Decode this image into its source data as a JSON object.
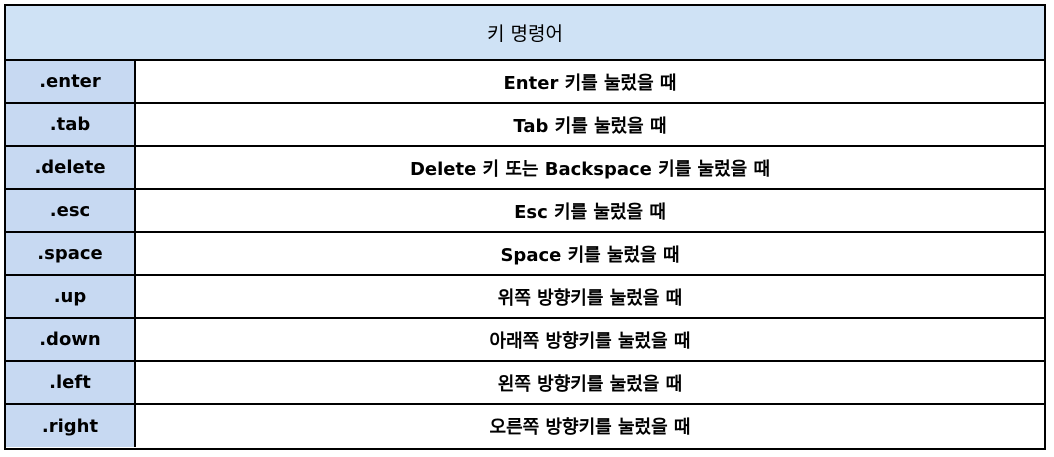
{
  "table": {
    "header": "키 명령어",
    "rows": [
      {
        "key": ".enter",
        "desc": "Enter 키를 눌렀을 때"
      },
      {
        "key": ".tab",
        "desc": "Tab 키를 눌렀을 때"
      },
      {
        "key": ".delete",
        "desc": "Delete 키 또는 Backspace 키를 눌렀을 때"
      },
      {
        "key": ".esc",
        "desc": "Esc 키를 눌렀을 때"
      },
      {
        "key": ".space",
        "desc": "Space 키를 눌렀을 때"
      },
      {
        "key": ".up",
        "desc": "위쪽 방향키를 눌렀을 때"
      },
      {
        "key": ".down",
        "desc": "아래쪽 방향키를 눌렀을 때"
      },
      {
        "key": ".left",
        "desc": "왼쪽 방향키를 눌렀을 때"
      },
      {
        "key": ".right",
        "desc": "오른쪽 방향키를 눌렀을 때"
      }
    ]
  },
  "colors": {
    "header_bg": "#cfe2f5",
    "key_cell_bg": "#c7d9f2",
    "border": "#000000"
  }
}
